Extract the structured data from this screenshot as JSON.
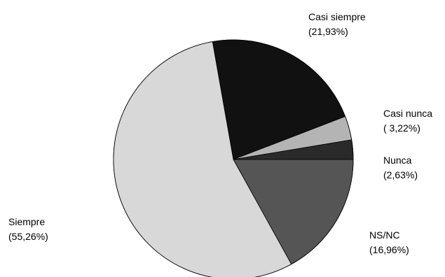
{
  "chart_data": {
    "type": "pie",
    "title": "",
    "slices": [
      {
        "label": "Casi siempre",
        "value": 21.93,
        "value_text": "(21,93%)",
        "color": "#111111"
      },
      {
        "label": "Casi nunca",
        "value": 3.22,
        "value_text": "( 3,22%)",
        "color": "#b4b4b4"
      },
      {
        "label": "Nunca",
        "value": 2.63,
        "value_text": "(2,63%)",
        "color": "#2a2a2a"
      },
      {
        "label": "NS/NC",
        "value": 16.96,
        "value_text": "(16,96%)",
        "color": "#555555"
      },
      {
        "label": "Siempre",
        "value": 55.26,
        "value_text": "(55,26%)",
        "color": "#d8d8d8"
      }
    ]
  }
}
